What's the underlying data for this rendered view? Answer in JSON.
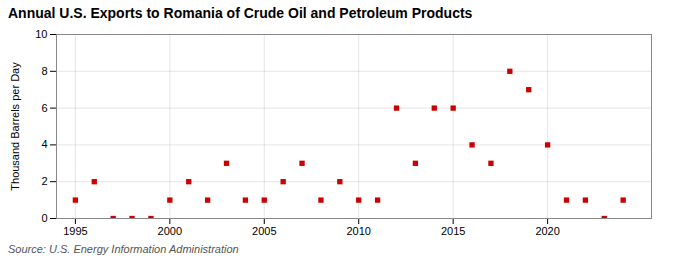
{
  "chart_data": {
    "type": "scatter",
    "title": "Annual U.S. Exports to Romania of Crude Oil and Petroleum Products",
    "ylabel": "Thousand Barrels per Day",
    "source": "Source: U.S. Energy Information Administration",
    "x": [
      1995,
      1996,
      1997,
      1998,
      1999,
      2000,
      2001,
      2002,
      2003,
      2004,
      2005,
      2006,
      2007,
      2008,
      2009,
      2010,
      2011,
      2012,
      2013,
      2014,
      2015,
      2016,
      2017,
      2018,
      2019,
      2020,
      2021,
      2022,
      2023,
      2024
    ],
    "values": [
      1,
      2,
      0,
      0,
      0,
      1,
      2,
      1,
      3,
      1,
      1,
      2,
      3,
      1,
      2,
      1,
      1,
      6,
      3,
      6,
      6,
      4,
      3,
      8,
      7,
      4,
      1,
      1,
      0,
      1
    ],
    "color": "#cc0000",
    "marker": "square",
    "xlim": [
      1994.0,
      2025.5
    ],
    "ylim": [
      0,
      10
    ],
    "xticks": [
      1995,
      2000,
      2005,
      2010,
      2015,
      2020
    ],
    "yticks": [
      0,
      2,
      4,
      6,
      8,
      10
    ],
    "grid": true
  }
}
